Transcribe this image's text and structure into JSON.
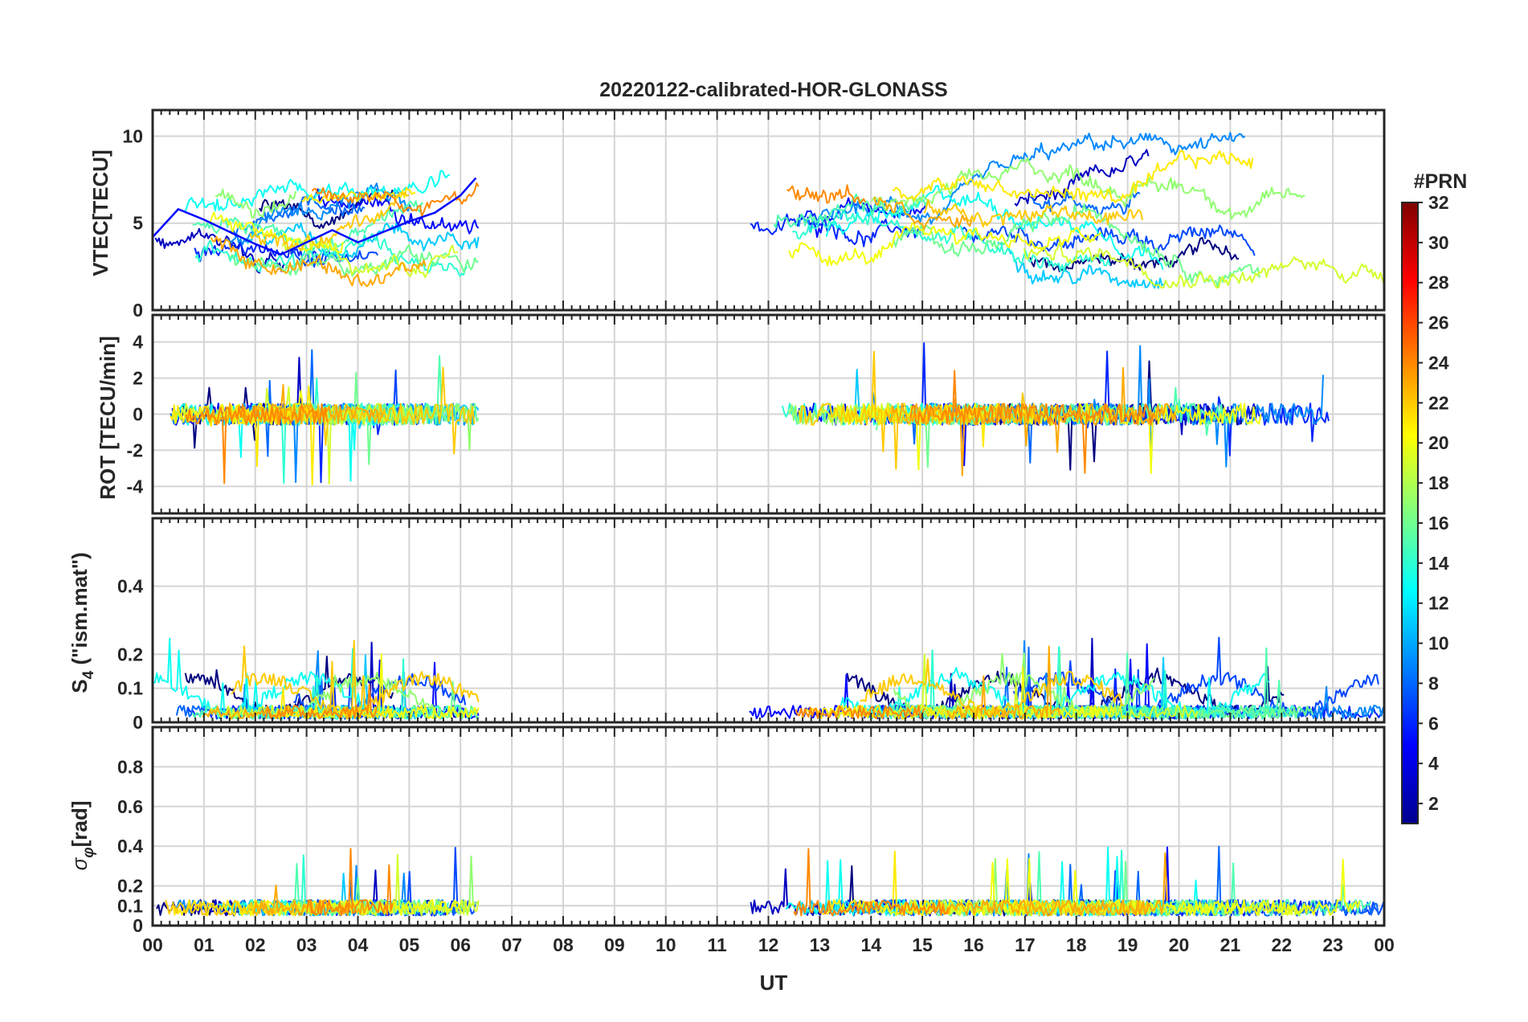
{
  "chart_data": {
    "type": "line",
    "title": "20220122-calibrated-HOR-GLONASS",
    "xlabel": "UT",
    "x_ticks": [
      "00",
      "01",
      "02",
      "03",
      "04",
      "05",
      "06",
      "07",
      "08",
      "09",
      "10",
      "11",
      "12",
      "13",
      "14",
      "15",
      "16",
      "17",
      "18",
      "19",
      "20",
      "21",
      "22",
      "23",
      "00"
    ],
    "x_range_hours": [
      0,
      24
    ],
    "data_gap_hours": [
      6.35,
      11.6
    ],
    "grid": true,
    "colormap": "jet",
    "colorbar": {
      "label": "#PRN",
      "range": [
        1,
        32
      ],
      "ticks": [
        "2",
        "4",
        "6",
        "8",
        "10",
        "12",
        "14",
        "16",
        "18",
        "20",
        "22",
        "24",
        "26",
        "28",
        "30",
        "32"
      ],
      "placement": "right"
    },
    "panels": [
      {
        "name": "vtec",
        "ylabel": "VTEC[TECU]",
        "ylim": [
          0,
          11.5
        ],
        "yticks": [
          {
            "v": 0,
            "t": "0"
          },
          {
            "v": 5,
            "t": "5"
          },
          {
            "v": 10,
            "t": "10"
          }
        ],
        "series": [
          {
            "prn": 5,
            "segments": [
              {
                "x": [
                  0,
                  0.5,
                  1,
                  1.5,
                  2,
                  2.5,
                  3,
                  3.5,
                  4,
                  4.5,
                  5,
                  5.5,
                  6,
                  6.3
                ],
                "y": [
                  4.2,
                  5.8,
                  5.2,
                  4.5,
                  3.8,
                  3.2,
                  3.9,
                  4.6,
                  3.9,
                  4.5,
                  5.1,
                  5.6,
                  6.6,
                  7.6
                ]
              }
            ]
          }
        ]
      },
      {
        "name": "rot",
        "ylabel": "ROT [TECU/min]",
        "ylim": [
          -5.5,
          5.5
        ],
        "yticks": [
          {
            "v": -4,
            "t": "-4"
          },
          {
            "v": -2,
            "t": "-2"
          },
          {
            "v": 0,
            "t": "0"
          },
          {
            "v": 2,
            "t": "2"
          },
          {
            "v": 4,
            "t": "4"
          }
        ]
      },
      {
        "name": "s4",
        "ylabel": "S4 (\"ism.mat\")",
        "ylim": [
          0,
          0.6
        ],
        "yticks": [
          {
            "v": 0,
            "t": "0"
          },
          {
            "v": 0.1,
            "t": "0.1"
          },
          {
            "v": 0.2,
            "t": "0.2"
          },
          {
            "v": 0.4,
            "t": "0.4"
          }
        ]
      },
      {
        "name": "sigma_phi",
        "ylabel": "σφ[rad]",
        "ylim": [
          0,
          1.0
        ],
        "yticks": [
          {
            "v": 0,
            "t": "0"
          },
          {
            "v": 0.1,
            "t": "0.1"
          },
          {
            "v": 0.2,
            "t": "0.2"
          },
          {
            "v": 0.4,
            "t": "0.4"
          },
          {
            "v": 0.6,
            "t": "0.6"
          },
          {
            "v": 0.8,
            "t": "0.8"
          }
        ]
      }
    ]
  },
  "labels": {
    "title": "20220122-calibrated-HOR-GLONASS",
    "xlabel": "UT",
    "colorbar_label": "#PRN",
    "vtec_ylabel": "VTEC[TECU]",
    "rot_ylabel": "ROT [TECU/min]",
    "s4_main": "S",
    "s4_sub": "4",
    "s4_rest": " (\"ism.mat\")",
    "sigma_main": "σ",
    "sigma_sub": "φ",
    "sigma_rest": "[rad]"
  }
}
